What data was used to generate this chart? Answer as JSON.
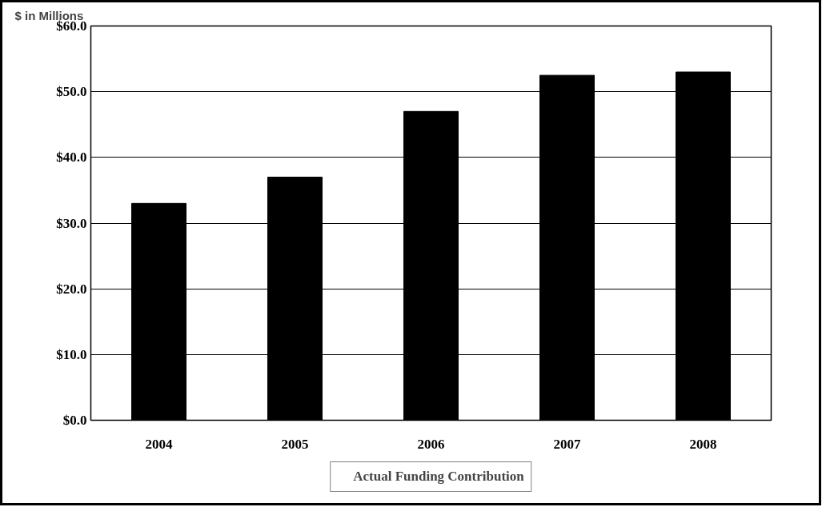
{
  "chart_data": {
    "type": "bar",
    "ylabel": "$ in Millions",
    "categories": [
      "2004",
      "2005",
      "2006",
      "2007",
      "2008"
    ],
    "series": [
      {
        "name": "Actual Funding Contribution",
        "color": "#000000",
        "values": [
          33,
          37,
          47,
          52.5,
          53
        ]
      }
    ],
    "ylim": [
      0,
      60
    ],
    "yticks": [
      {
        "value": 0,
        "label": "$0.0"
      },
      {
        "value": 10,
        "label": "$10.0"
      },
      {
        "value": 20,
        "label": "$20.0"
      },
      {
        "value": 30,
        "label": "$30.0"
      },
      {
        "value": 40,
        "label": "$40.0"
      },
      {
        "value": 50,
        "label": "$50.0"
      },
      {
        "value": 60,
        "label": "$60.0"
      }
    ],
    "grid": "y",
    "legend": "bottom"
  }
}
